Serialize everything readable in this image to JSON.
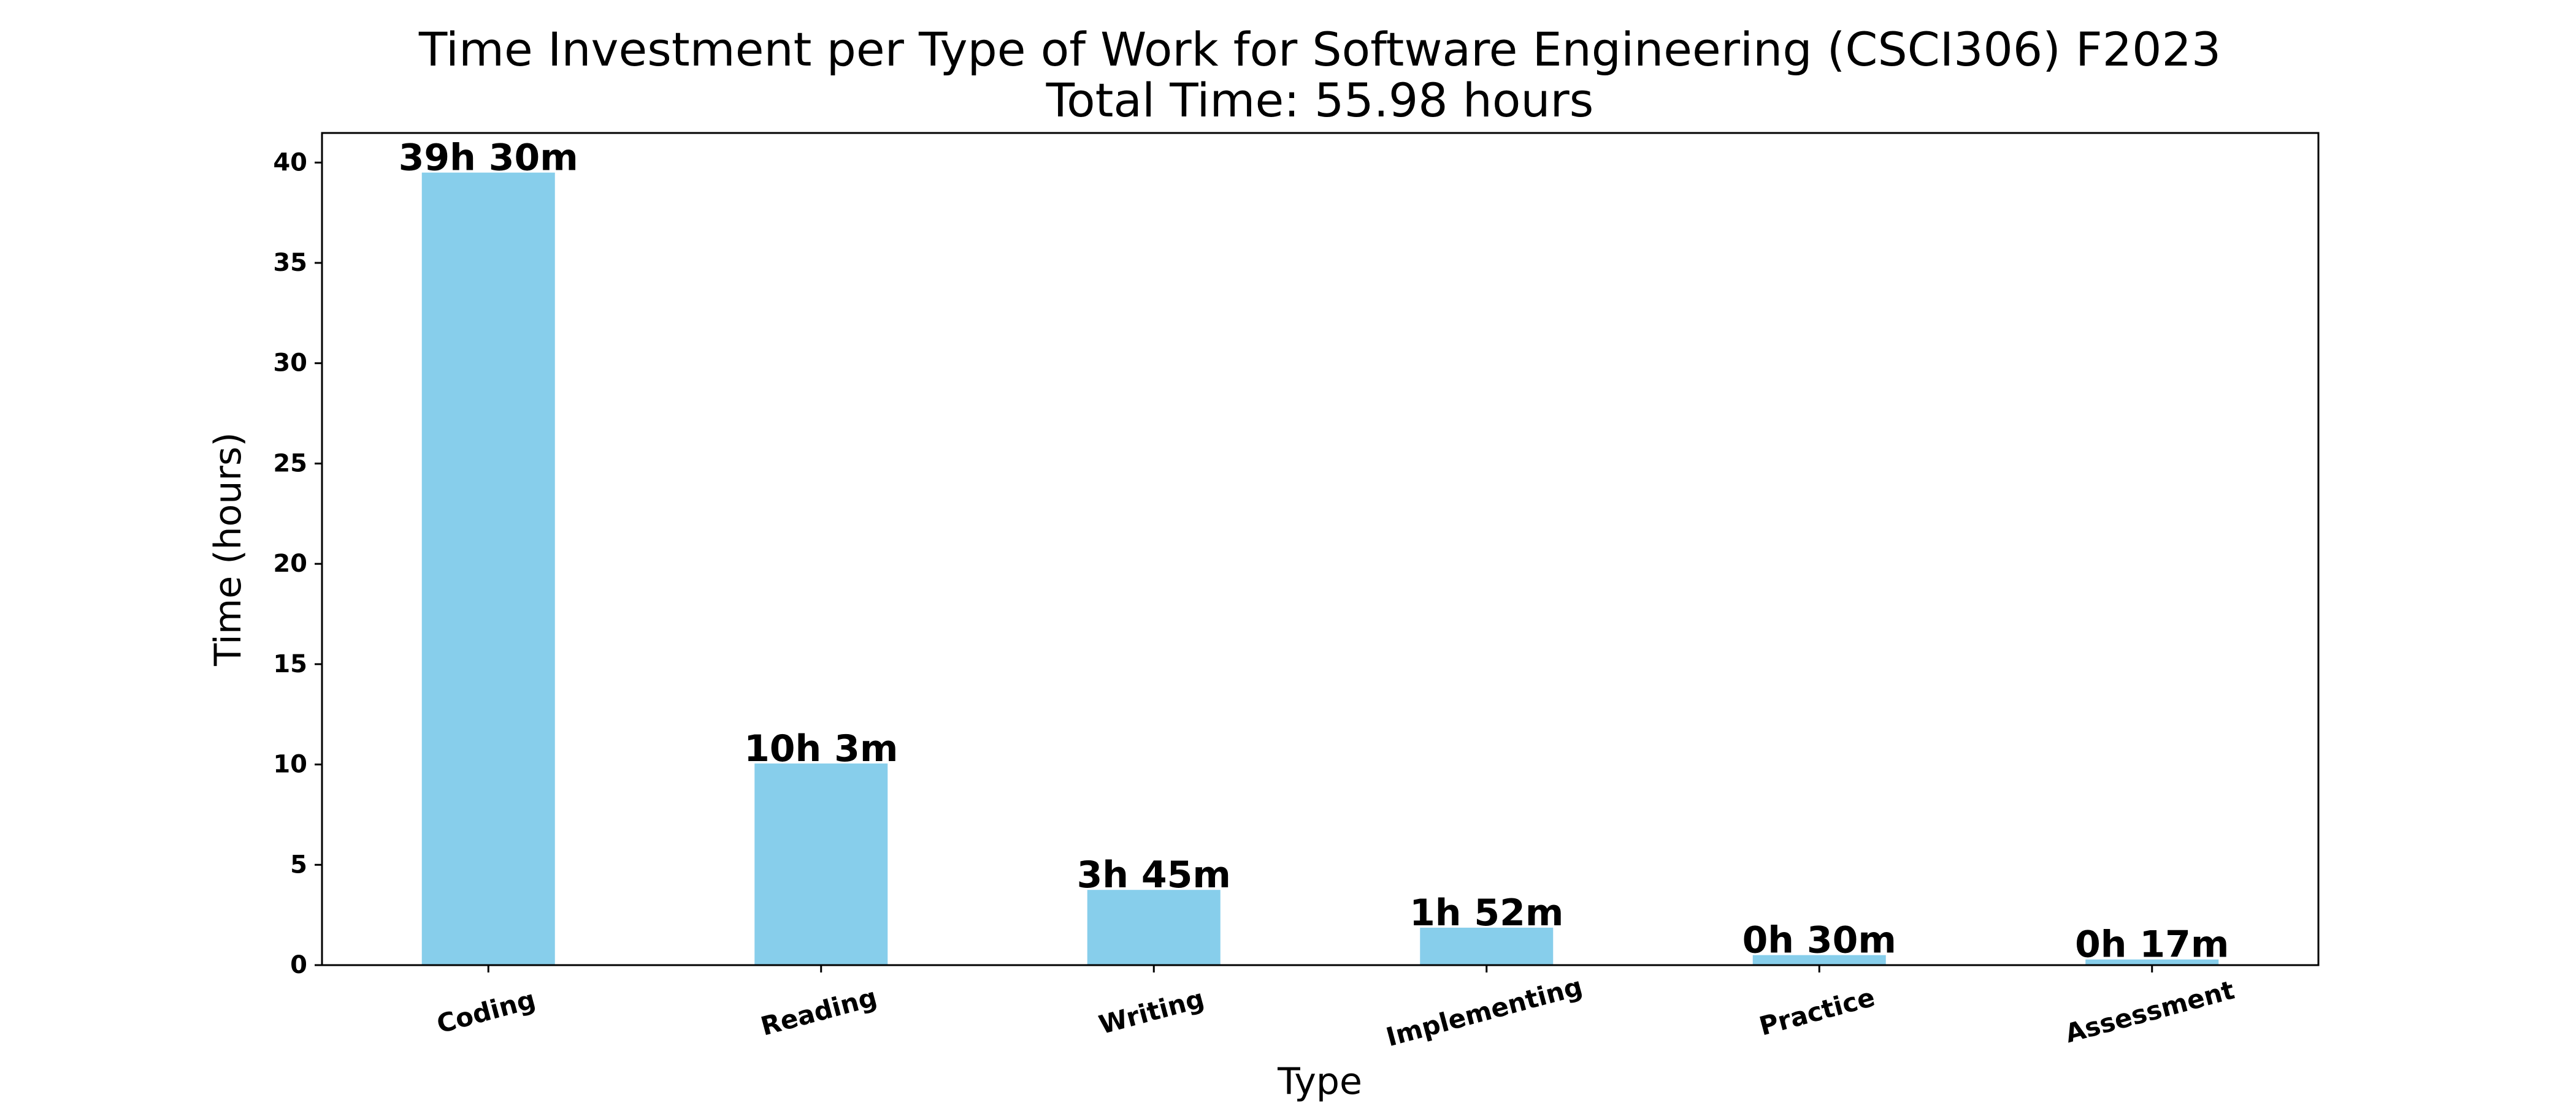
{
  "chart_data": {
    "type": "bar",
    "title": "Time Investment per Type of Work for Software Engineering (CSCI306) F2023",
    "subtitle": "Total Time: 55.98 hours",
    "xlabel": "Type",
    "ylabel": "Time (hours)",
    "categories": [
      "Coding",
      "Reading",
      "Writing",
      "Implementing",
      "Practice",
      "Assessment"
    ],
    "values": [
      39.5,
      10.05,
      3.75,
      1.8667,
      0.5,
      0.2833
    ],
    "data_labels": [
      "39h 30m",
      "10h 3m",
      "3h 45m",
      "1h 52m",
      "0h 30m",
      "0h 17m"
    ],
    "yticks": [
      0,
      5,
      10,
      15,
      20,
      25,
      30,
      35,
      40
    ],
    "ylim": [
      0,
      41.475
    ],
    "grid": false,
    "bar_color": "#87CEEB"
  }
}
